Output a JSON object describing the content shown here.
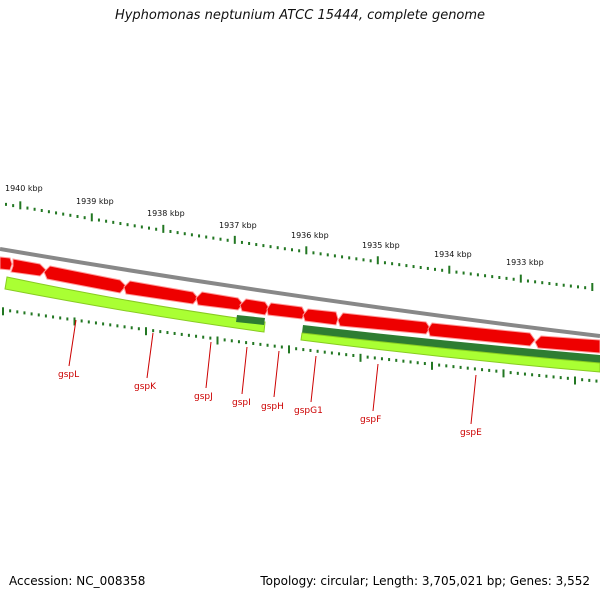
{
  "title": "Hyphomonas neptunium ATCC 15444, complete genome",
  "footer": {
    "accession": "Accession: NC_008358",
    "topology": "Topology: circular; Length: 3,705,021 bp; Genes: 3,552"
  },
  "scale_labels": [
    "1940 kbp",
    "1939 kbp",
    "1938 kbp",
    "1937 kbp",
    "1936 kbp",
    "1935 kbp",
    "1934 kbp",
    "1933 kbp"
  ],
  "genes": [
    "gspL",
    "gspK",
    "gspJ",
    "gspI",
    "gspH",
    "gspG1",
    "gspF",
    "gspE"
  ],
  "colors": {
    "backbone": "#888888",
    "gene_red": "#ee0000",
    "gene_red_light": "#ff9999",
    "gene_dark_green": "#2e7d32",
    "gene_light_green": "#aaff33",
    "tick_green": "#227722",
    "label_red": "#cc0000"
  }
}
